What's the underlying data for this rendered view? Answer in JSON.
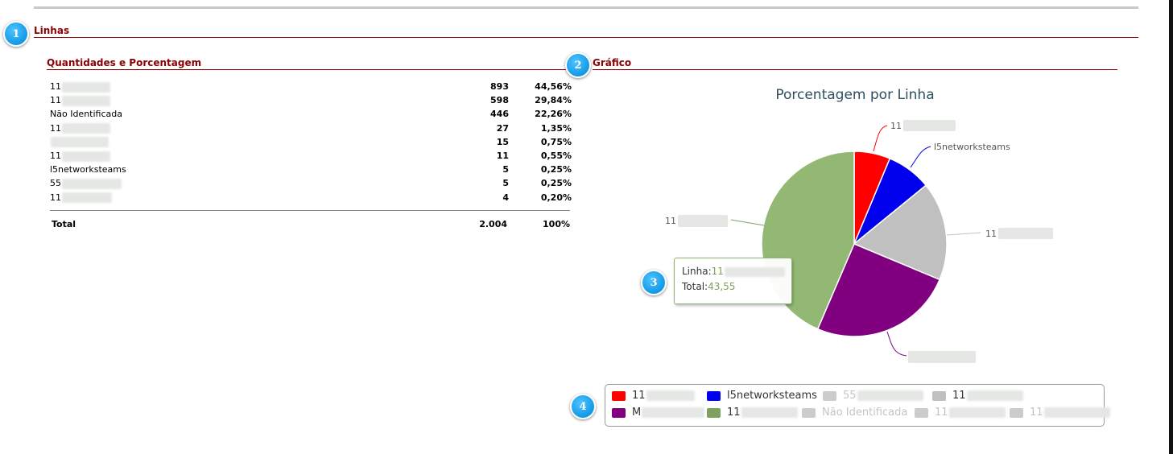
{
  "callouts": [
    "1",
    "2",
    "3",
    "4"
  ],
  "section": {
    "title": "Linhas"
  },
  "quantities": {
    "title": "Quantidades e Porcentagem",
    "rows": [
      {
        "name": "11",
        "count": "893",
        "pct": "44,56%"
      },
      {
        "name": "11",
        "count": "598",
        "pct": "29,84%"
      },
      {
        "name": "Não Identificada",
        "count": "446",
        "pct": "22,26%"
      },
      {
        "name": "11",
        "count": "27",
        "pct": "1,35%"
      },
      {
        "name": "",
        "count": "15",
        "pct": "0,75%"
      },
      {
        "name": "11",
        "count": "11",
        "pct": "0,55%"
      },
      {
        "name": "l5networksteams",
        "count": "5",
        "pct": "0,25%"
      },
      {
        "name": "55",
        "count": "5",
        "pct": "0,25%"
      },
      {
        "name": "11",
        "count": "4",
        "pct": "0,20%"
      }
    ],
    "total": {
      "label": "Total",
      "count": "2.004",
      "pct": "100%"
    }
  },
  "chart": {
    "section_title": "Gráfico",
    "title": "Porcentagem por Linha",
    "colors": {
      "red": "#ff0000",
      "blue": "#0000ee",
      "gray": "#c0c0c0",
      "purple": "#800080",
      "green": "#93b874"
    },
    "slice_labels": [
      "11",
      "l5networksteams",
      "11",
      "11"
    ]
  },
  "chart_data": {
    "type": "pie",
    "title": "Porcentagem por Linha",
    "slices": [
      {
        "label": "11",
        "value": 6.3,
        "color": "#ff0000"
      },
      {
        "label": "l5networksteams",
        "value": 7.8,
        "color": "#0000ee"
      },
      {
        "label": "11",
        "value": 17.2,
        "color": "#c0c0c0"
      },
      {
        "label": "",
        "value": 25.15,
        "color": "#800080"
      },
      {
        "label": "11",
        "value": 43.55,
        "color": "#93b874"
      }
    ]
  },
  "tooltip": {
    "line_label": "Linha:",
    "line_value": "11",
    "total_label": "Total:",
    "total_value": "43,55"
  },
  "legend": {
    "items": [
      {
        "label": "11",
        "color": "#ff0000",
        "active": true
      },
      {
        "label": "l5networksteams",
        "color": "#0000ee",
        "active": true
      },
      {
        "label": "55",
        "color": "#cccccc",
        "active": false
      },
      {
        "label": "11",
        "color": "#c0c0c0",
        "active": true
      },
      {
        "label": "M",
        "color": "#800080",
        "active": true
      },
      {
        "label": "11",
        "color": "#7ea060",
        "active": true
      },
      {
        "label": "Não Identificada",
        "color": "#cccccc",
        "active": false
      },
      {
        "label": "11",
        "color": "#cccccc",
        "active": false
      },
      {
        "label": "11",
        "color": "#cccccc",
        "active": false
      }
    ]
  }
}
